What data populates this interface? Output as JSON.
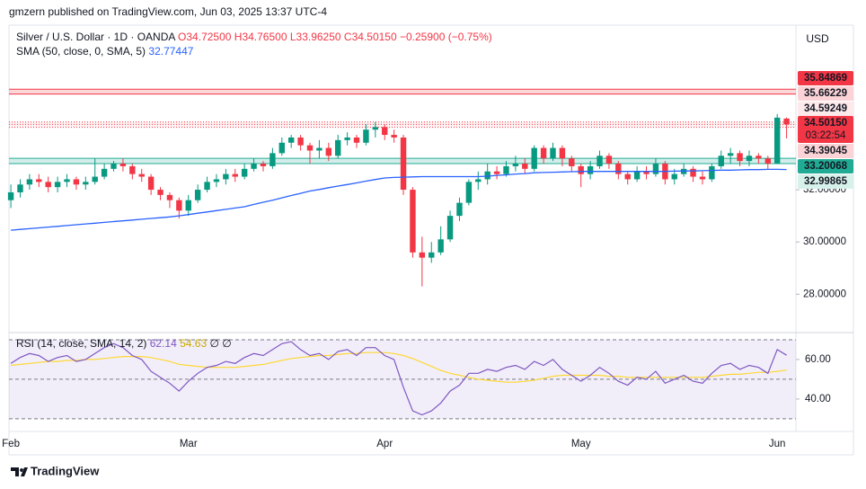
{
  "header": {
    "publisher": "gmzern published on TradingView.com, Jun 03, 2025 13:37 UTC-4"
  },
  "chart_data": {
    "type": "candlestick",
    "title": "Silver / U.S. Dollar · 1D · OANDA",
    "ohlc_legend": [
      {
        "value": 34.725,
        "label": "O34.72500"
      },
      {
        "value": 34.765,
        "label": "H34.76500"
      },
      {
        "value": 33.9625,
        "label": "L33.96250"
      },
      {
        "value": 34.5015,
        "label": "C34.50150"
      },
      {
        "value": -0.259,
        "label": "−0.25900"
      },
      {
        "value": -0.75,
        "label": "(−0.75%)"
      }
    ],
    "ohlc_color": "#f23645",
    "currency": "USD",
    "xlim": [
      -0.2,
      84
    ],
    "xticks": [
      {
        "value": 0,
        "label": "Feb"
      },
      {
        "value": 19,
        "label": "Mar"
      },
      {
        "value": 40,
        "label": "Apr"
      },
      {
        "value": 61,
        "label": "May"
      },
      {
        "value": 82,
        "label": "Jun"
      }
    ],
    "ylim": [
      26.6,
      38.3
    ],
    "yticks": [
      {
        "value": 28,
        "label": "28.00000"
      },
      {
        "value": 30,
        "label": "30.00000"
      },
      {
        "value": 32,
        "label": "32.00000"
      }
    ],
    "up_color": "#089981",
    "down_color": "#f23645",
    "open": [
      31.6,
      31.9,
      32.2,
      32.4,
      32.3,
      32.1,
      32.3,
      32.4,
      32.2,
      32.3,
      32.5,
      32.8,
      33.0,
      32.9,
      32.6,
      32.5,
      32.0,
      31.8,
      31.6,
      31.2,
      31.6,
      32.0,
      32.3,
      32.4,
      32.6,
      32.5,
      32.8,
      33.0,
      32.9,
      33.4,
      33.8,
      34.0,
      33.7,
      33.5,
      33.6,
      33.3,
      33.9,
      34.0,
      33.8,
      34.3,
      34.4,
      34.1,
      34.0,
      32.0,
      29.6,
      29.4,
      29.6,
      30.1,
      31.0,
      31.5,
      32.3,
      32.4,
      32.7,
      32.6,
      32.9,
      33.0,
      32.8,
      33.6,
      33.2,
      33.6,
      33.2,
      32.9,
      32.6,
      32.9,
      33.3,
      33.0,
      32.6,
      32.4,
      32.7,
      32.6,
      33.0,
      32.4,
      32.6,
      32.8,
      32.5,
      32.4,
      32.9,
      33.3,
      33.4,
      33.1,
      33.3,
      33.2,
      33.0,
      34.725
    ],
    "high": [
      32.2,
      32.4,
      32.6,
      32.6,
      32.5,
      32.5,
      32.6,
      32.5,
      32.5,
      33.2,
      33.0,
      33.1,
      33.2,
      33.0,
      32.8,
      32.6,
      32.1,
      31.9,
      31.7,
      31.8,
      32.2,
      32.5,
      32.6,
      32.8,
      32.8,
      33.0,
      33.2,
      33.1,
      33.6,
      34.0,
      34.1,
      34.1,
      33.8,
      33.9,
      33.8,
      34.1,
      34.2,
      34.1,
      34.5,
      34.6,
      34.5,
      34.3,
      34.1,
      32.1,
      30.2,
      30.0,
      30.6,
      31.2,
      31.7,
      32.4,
      32.7,
      33.0,
      32.9,
      33.1,
      33.3,
      33.2,
      33.7,
      33.7,
      33.8,
      33.7,
      33.3,
      33.0,
      33.1,
      33.5,
      33.4,
      33.1,
      32.7,
      32.9,
      32.9,
      33.2,
      33.1,
      32.8,
      33.0,
      32.9,
      32.7,
      33.0,
      33.5,
      33.6,
      33.5,
      33.5,
      33.4,
      33.3,
      34.9,
      34.765
    ],
    "low": [
      31.3,
      31.7,
      32.0,
      32.1,
      31.9,
      31.9,
      32.1,
      32.0,
      32.0,
      32.2,
      32.4,
      32.7,
      32.7,
      32.4,
      32.3,
      31.8,
      31.6,
      31.3,
      30.9,
      31.0,
      31.5,
      31.9,
      32.1,
      32.2,
      32.3,
      32.4,
      32.7,
      32.7,
      32.8,
      33.3,
      33.6,
      33.5,
      33.0,
      33.2,
      33.1,
      33.2,
      33.7,
      33.6,
      33.7,
      34.0,
      33.9,
      33.8,
      31.8,
      29.4,
      28.3,
      29.2,
      29.5,
      30.0,
      30.8,
      31.4,
      32.0,
      32.2,
      32.4,
      32.5,
      32.7,
      32.6,
      32.7,
      33.0,
      33.1,
      32.9,
      32.7,
      32.1,
      32.4,
      32.8,
      32.8,
      32.4,
      32.2,
      32.3,
      32.4,
      32.5,
      32.2,
      32.2,
      32.5,
      32.3,
      32.2,
      32.3,
      32.8,
      33.0,
      32.9,
      32.9,
      33.0,
      32.8,
      32.98,
      33.9625
    ],
    "close": [
      31.9,
      32.2,
      32.4,
      32.3,
      32.1,
      32.3,
      32.4,
      32.2,
      32.3,
      32.5,
      32.8,
      33.0,
      32.9,
      32.6,
      32.5,
      32.0,
      31.8,
      31.6,
      31.2,
      31.6,
      32.0,
      32.3,
      32.4,
      32.6,
      32.5,
      32.8,
      33.0,
      32.9,
      33.4,
      33.8,
      34.0,
      33.7,
      33.5,
      33.6,
      33.3,
      33.9,
      34.0,
      33.8,
      34.3,
      34.4,
      34.1,
      34.0,
      32.0,
      29.6,
      29.4,
      29.6,
      30.1,
      31.0,
      31.5,
      32.3,
      32.4,
      32.7,
      32.6,
      32.9,
      33.0,
      32.8,
      33.6,
      33.2,
      33.6,
      33.2,
      32.9,
      32.6,
      32.9,
      33.3,
      33.0,
      32.6,
      32.4,
      32.7,
      32.6,
      33.0,
      32.4,
      32.6,
      32.8,
      32.5,
      32.4,
      32.9,
      33.3,
      33.4,
      33.1,
      33.3,
      33.2,
      33.0,
      34.7605,
      34.5015
    ],
    "sma": {
      "name": "SMA (50, close, 0, SMA, 5)",
      "color": "#2962ff",
      "values": [
        30.45,
        30.48,
        30.51,
        30.54,
        30.57,
        30.6,
        30.63,
        30.66,
        30.69,
        30.72,
        30.75,
        30.78,
        30.81,
        30.84,
        30.87,
        30.9,
        30.93,
        30.96,
        31.0,
        31.05,
        31.1,
        31.15,
        31.2,
        31.25,
        31.3,
        31.35,
        31.44,
        31.52,
        31.6,
        31.69,
        31.78,
        31.86,
        31.95,
        32.01,
        32.08,
        32.14,
        32.2,
        32.26,
        32.33,
        32.39,
        32.45,
        32.47,
        32.48,
        32.49,
        32.5,
        32.5,
        32.5,
        32.5,
        32.5,
        32.5,
        32.5,
        32.52,
        32.55,
        32.57,
        32.6,
        32.62,
        32.65,
        32.66,
        32.67,
        32.68,
        32.69,
        32.7,
        32.7,
        32.7,
        32.7,
        32.7,
        32.7,
        32.7,
        32.7,
        32.7,
        32.7,
        32.71,
        32.72,
        32.72,
        32.73,
        32.74,
        32.75,
        32.75,
        32.76,
        32.77,
        32.77,
        32.78,
        32.78,
        32.77447
      ]
    },
    "levels": [
      {
        "value": 35.84869,
        "bg": "#f23645",
        "fg": "#ffffff",
        "line": "#f23645",
        "dash": false,
        "zone_fill": "rgba(242,54,69,0.2)"
      },
      {
        "value": 35.66229,
        "bg": "#fbd3d6",
        "fg": "#f23645",
        "line": "#f23645",
        "dash": false
      },
      {
        "value": 34.59249,
        "bg": "#fde8ea",
        "fg": "#f23645",
        "line": "#f23645",
        "dash": true,
        "zone_fill": "rgba(242,54,69,0.08)"
      },
      {
        "value": 34.39045,
        "bg": "#fbd3d6",
        "fg": "#f23645",
        "line": "#f23645",
        "dash": true
      },
      {
        "value": 33.20068,
        "bg": "#22ab94",
        "fg": "#ffffff",
        "line": "#22ab94",
        "dash": false,
        "zone_fill": "rgba(34,171,148,0.2)"
      },
      {
        "value": 32.99865,
        "bg": "#d6f0ea",
        "fg": "#131722",
        "line": "#22ab94",
        "dash": false
      }
    ],
    "last_price": {
      "value": 34.5015,
      "label": "34.50150",
      "countdown": "03:22:54",
      "color": "#f23645"
    },
    "rsi": {
      "name": "RSI (14, close, SMA, 14, 2)",
      "color": "#7e57c2",
      "smoothing_color": "#fdd835",
      "ylim": [
        24.5,
        72.7
      ],
      "yticks": [
        {
          "value": 60,
          "label": "60.00"
        },
        {
          "value": 40,
          "label": "40.00"
        }
      ],
      "bands": [
        70,
        50,
        30
      ],
      "band_fill": "rgba(126,87,194,0.1)",
      "na_values": [
        "∅",
        "∅"
      ],
      "values": [
        58,
        61,
        63,
        62,
        59,
        61,
        62,
        59,
        60,
        63,
        66,
        68,
        66,
        62,
        60,
        54,
        51,
        48,
        44,
        49,
        53,
        56,
        57,
        59,
        58,
        61,
        63,
        62,
        65,
        68,
        69,
        65,
        62,
        63,
        60,
        64,
        65,
        62,
        66,
        66,
        62,
        60,
        46,
        34,
        32,
        34,
        38,
        44,
        47,
        53,
        53,
        55,
        54,
        56,
        57,
        55,
        59,
        57,
        60,
        55,
        52,
        49,
        52,
        56,
        53,
        49,
        47,
        51,
        50,
        54,
        48,
        50,
        52,
        49,
        48,
        53,
        57,
        58,
        55,
        57,
        56,
        53,
        65,
        62.14
      ],
      "smoothing": [
        57,
        57.5,
        58,
        58.5,
        59,
        59,
        59.5,
        59.5,
        60,
        60,
        60.5,
        61,
        61.5,
        61.5,
        61.5,
        61,
        60,
        59,
        57.5,
        57,
        56.5,
        56,
        56,
        56,
        56,
        56.5,
        57,
        57.5,
        58.5,
        59.5,
        60.5,
        61,
        61.5,
        62,
        62,
        62.5,
        63,
        63,
        63.5,
        63.5,
        63.5,
        63,
        62,
        60.5,
        58.5,
        56.5,
        54.5,
        53,
        52,
        51,
        50,
        49.5,
        49,
        48.5,
        48.5,
        49,
        49.5,
        50.5,
        51.5,
        52,
        52,
        52,
        52,
        52,
        51.5,
        51.5,
        51,
        51,
        51,
        51,
        51,
        51,
        51,
        51,
        51,
        51.5,
        52,
        52.5,
        52.5,
        53,
        53.5,
        53.5,
        54,
        54.63
      ]
    }
  },
  "footer": {
    "brand": "TradingView"
  }
}
